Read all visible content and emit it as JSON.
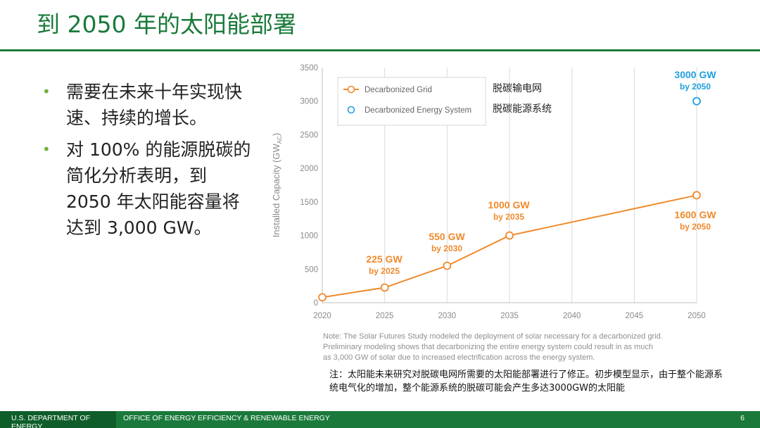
{
  "slide": {
    "title": "到 2050 年的太阳能部署",
    "bullets": [
      "需要在未来十年实现快速、持续的增长。",
      "对 100% 的能源脱碳的简化分析表明，到 2050 年太阳能容量将达到 3,000 GW。"
    ],
    "note_cn": "注：太阳能未来研究对脱碳电网所需要的太阳能部署进行了修正。初步模型显示，由于整个能源系统电气化的增加，整个能源系统的脱碳可能会产生多达3000GW的太阳能",
    "colors": {
      "title": "#1a7a3a",
      "rule": "#1f7a3a",
      "bullet": "#6cb33f",
      "footer": "#1b7a3b"
    }
  },
  "footer": {
    "left": "U.S. DEPARTMENT OF ENERGY",
    "mid": "OFFICE OF ENERGY EFFICIENCY & RENEWABLE ENERGY",
    "page": "6"
  },
  "chart_data": {
    "type": "line",
    "ylabel": "Installed Capacity (GW",
    "ylabel_sub": "AC",
    "ylabel_end": ")",
    "ylim": [
      0,
      3500
    ],
    "yticks": [
      0,
      500,
      1000,
      1500,
      2000,
      2500,
      3000,
      3500
    ],
    "xlim": [
      2020,
      2050
    ],
    "xticks": [
      2020,
      2025,
      2030,
      2035,
      2040,
      2045,
      2050
    ],
    "grid": "vertical",
    "legend_position": "top-left",
    "series": [
      {
        "name": "Decarbonized Grid",
        "name_cn": "脱碳输电网",
        "color": "#f08a2c",
        "marker": "open-circle",
        "line": true,
        "x": [
          2020,
          2025,
          2030,
          2035,
          2050
        ],
        "y": [
          80,
          225,
          550,
          1000,
          1600
        ]
      },
      {
        "name": "Decarbonized Energy System",
        "name_cn": "脱碳能源系统",
        "color": "#1ea1e0",
        "marker": "open-circle",
        "line": false,
        "x": [
          2050
        ],
        "y": [
          3000
        ]
      }
    ],
    "annotations": [
      {
        "value": "225 GW",
        "sub": "by 2025",
        "color": "#f08a2c"
      },
      {
        "value": "550 GW",
        "sub": "by 2030",
        "color": "#f08a2c"
      },
      {
        "value": "1000 GW",
        "sub": "by 2035",
        "color": "#f08a2c"
      },
      {
        "value": "1600 GW",
        "sub": "by 2050",
        "color": "#f08a2c"
      },
      {
        "value": "3000 GW",
        "sub": "by 2050",
        "color": "#1ea1e0"
      }
    ],
    "note": [
      "Note: The Solar Futures Study modeled the deployment of solar necessary for a decarbonized grid.",
      "Preliminary modeling shows that decarbonizing the entire energy system could result in as much",
      "as 3,000 GW of solar due to increased electrification across the energy system."
    ]
  }
}
